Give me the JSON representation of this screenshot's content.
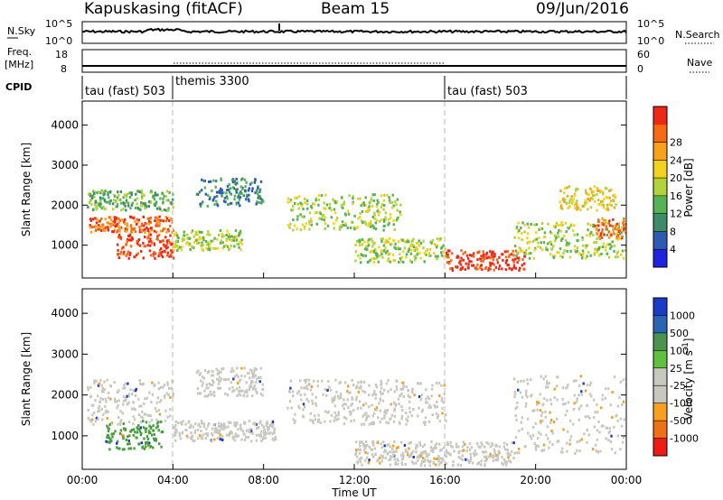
{
  "header": {
    "station": "Kapuskasing (fitACF)",
    "beam": "Beam 15",
    "date": "09/Jun/2016"
  },
  "noise_panel": {
    "left_label": "N.Sky",
    "left_ticks": [
      "10^5",
      "10^0"
    ],
    "right_label": "N.Search",
    "right_ticks": [
      "10^5",
      "10^0"
    ]
  },
  "freq_panel": {
    "left_label_1": "Freq.",
    "left_label_2": "[MHz]",
    "left_ticks": [
      "18",
      "8"
    ],
    "right_label": "Nave",
    "right_ticks": [
      "60",
      "0"
    ]
  },
  "cpid_panel": {
    "label": "CPID",
    "modes": [
      {
        "name": "tau (fast) 503",
        "start_hour": 0,
        "end_hour": 4
      },
      {
        "name": "themis 3300",
        "start_hour": 4,
        "end_hour": 16
      },
      {
        "name": "tau (fast) 503",
        "start_hour": 16,
        "end_hour": 24
      }
    ]
  },
  "chart_data": [
    {
      "type": "heatmap",
      "name": "power",
      "ylabel": "Slant Range [km]",
      "ylim": [
        180,
        4600
      ],
      "yticks": [
        1000,
        2000,
        3000,
        4000
      ],
      "xlim": [
        0,
        24
      ],
      "colorbar": {
        "label": "Power [dB]",
        "ticks": [
          "4",
          "8",
          "12",
          "16",
          "20",
          "24",
          "28"
        ],
        "colors": [
          "#1c24dc",
          "#2f5ab4",
          "#3f8a6a",
          "#55b255",
          "#b4d23c",
          "#f2d21e",
          "#f7a21c",
          "#f56a14",
          "#ec2818"
        ]
      },
      "echo_regions": [
        {
          "t": [
            0.3,
            4.0
          ],
          "r": [
            1350,
            1750
          ],
          "level": 8
        },
        {
          "t": [
            1.5,
            4.0
          ],
          "r": [
            700,
            1300
          ],
          "level": 9
        },
        {
          "t": [
            0.2,
            4.0
          ],
          "r": [
            1900,
            2400
          ],
          "level": 4
        },
        {
          "t": [
            4.0,
            7.0
          ],
          "r": [
            900,
            1400
          ],
          "level": 5
        },
        {
          "t": [
            5.0,
            8.0
          ],
          "r": [
            2000,
            2700
          ],
          "level": 3
        },
        {
          "t": [
            9.0,
            14.0
          ],
          "r": [
            1400,
            2300
          ],
          "level": 5
        },
        {
          "t": [
            12.0,
            16.0
          ],
          "r": [
            600,
            1200
          ],
          "level": 5
        },
        {
          "t": [
            16.0,
            19.5
          ],
          "r": [
            400,
            900
          ],
          "level": 9
        },
        {
          "t": [
            19.0,
            24.0
          ],
          "r": [
            700,
            1600
          ],
          "level": 5
        },
        {
          "t": [
            21.0,
            23.5
          ],
          "r": [
            1900,
            2500
          ],
          "level": 6
        },
        {
          "t": [
            22.5,
            24.0
          ],
          "r": [
            1200,
            1700
          ],
          "level": 8
        }
      ]
    },
    {
      "type": "heatmap",
      "name": "velocity",
      "ylabel": "Slant Range [km]",
      "ylim": [
        180,
        4600
      ],
      "yticks": [
        1000,
        2000,
        3000,
        4000
      ],
      "xlim": [
        0,
        24
      ],
      "xlabel": "Time UT",
      "xticks": [
        "00:00",
        "04:00",
        "08:00",
        "12:00",
        "16:00",
        "20:00",
        "00:00"
      ],
      "colorbar": {
        "label": "Velocity [m s^-1]",
        "ticks": [
          "1000",
          "500",
          "100",
          "25",
          "-25",
          "-100",
          "-500",
          "-1000"
        ],
        "colors": [
          "#1c3cc8",
          "#2c64b4",
          "#4a9450",
          "#60c040",
          "#c8c8c0",
          "#c8c8c0",
          "#f5a020",
          "#f07018",
          "#ec1c14"
        ]
      },
      "echo_regions": [
        {
          "t": [
            0.2,
            4.0
          ],
          "r": [
            1300,
            2400
          ],
          "color": "gray"
        },
        {
          "t": [
            1.0,
            3.5
          ],
          "r": [
            700,
            1400
          ],
          "color": "green"
        },
        {
          "t": [
            4.0,
            8.5
          ],
          "r": [
            900,
            1400
          ],
          "color": "gray"
        },
        {
          "t": [
            5.0,
            8.0
          ],
          "r": [
            2000,
            2700
          ],
          "color": "gray"
        },
        {
          "t": [
            9.0,
            16.0
          ],
          "r": [
            1300,
            2400
          ],
          "color": "gray"
        },
        {
          "t": [
            12.0,
            19.0
          ],
          "r": [
            300,
            900
          ],
          "color": "gray"
        },
        {
          "t": [
            19.0,
            24.0
          ],
          "r": [
            600,
            2500
          ],
          "color": "gray"
        }
      ]
    }
  ]
}
